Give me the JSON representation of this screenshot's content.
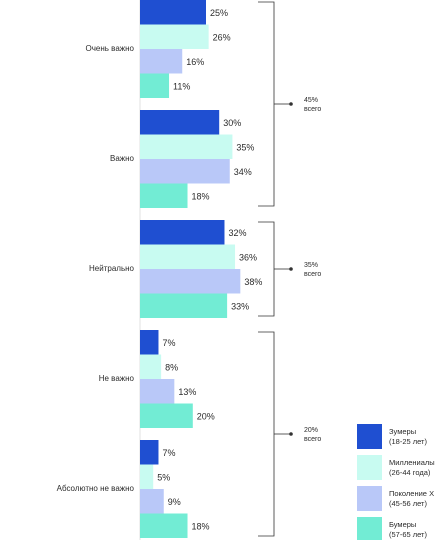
{
  "chart_data": {
    "type": "bar",
    "orientation": "horizontal",
    "unit": "%",
    "categories": [
      "Очень важно",
      "Важно",
      "Нейтрально",
      "Не важно",
      "Абсолютно не важно"
    ],
    "series": [
      {
        "name": "Зумеры",
        "subtitle": "(18-25 лет)",
        "color": "#1f4fd1",
        "values": [
          25,
          30,
          32,
          7,
          7
        ]
      },
      {
        "name": "Миллениалы",
        "subtitle": "(26-44 года)",
        "color": "#c8fbf1",
        "values": [
          26,
          35,
          36,
          8,
          5
        ]
      },
      {
        "name": "Поколение X",
        "subtitle": "(45-56 лет)",
        "color": "#b9c8f8",
        "values": [
          16,
          34,
          38,
          13,
          9
        ]
      },
      {
        "name": "Бумеры",
        "subtitle": "(57-65 лет)",
        "color": "#72ecd4",
        "values": [
          11,
          18,
          33,
          20,
          18
        ]
      }
    ],
    "groups": [
      {
        "value": "45%",
        "text": "всего",
        "categories": [
          0,
          1
        ]
      },
      {
        "value": "35%",
        "text": "всего",
        "categories": [
          2
        ]
      },
      {
        "value": "20%",
        "text": "всего",
        "categories": [
          3,
          4
        ]
      }
    ],
    "legend_position": "bottom-right",
    "grid": false
  }
}
